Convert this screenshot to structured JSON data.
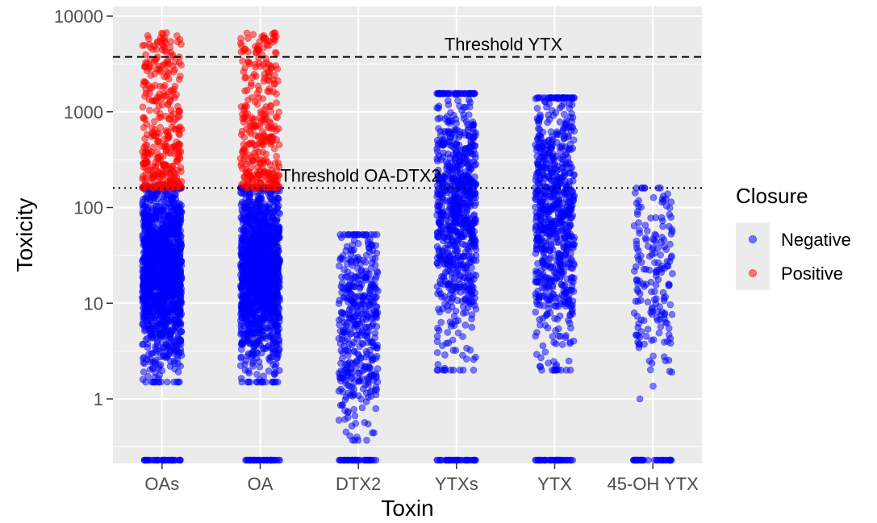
{
  "chart_data": {
    "type": "scatter",
    "title": "",
    "xlabel": "Toxin",
    "ylabel": "Toxicity",
    "y_scale": "log10",
    "ylim": [
      0.2,
      10000
    ],
    "y_ticks": [
      1,
      10,
      100,
      1000,
      10000
    ],
    "y_tick_labels": [
      "1",
      "10",
      "100",
      "1000",
      "10000"
    ],
    "categories": [
      "OAs",
      "OA",
      "DTX2",
      "YTXs",
      "YTX",
      "45-OH YTX"
    ],
    "grid": true,
    "background": "#ebebeb",
    "legend": {
      "title": "Closure",
      "position": "right",
      "entries": [
        {
          "label": "Negative",
          "color": "#0000ff"
        },
        {
          "label": "Positive",
          "color": "#ff0000"
        }
      ]
    },
    "thresholds": [
      {
        "label": "Threshold YTX",
        "value": 3750,
        "style": "dashed"
      },
      {
        "label": "Threshold OA-DTX2",
        "value": 160,
        "style": "dotted"
      }
    ],
    "distributions": [
      {
        "category": "OAs",
        "negative_range": [
          1.5,
          160
        ],
        "positive_range": [
          160,
          6700
        ],
        "n_negative": 1400,
        "n_positive": 350,
        "zero_cluster": true
      },
      {
        "category": "OA",
        "negative_range": [
          1.5,
          160
        ],
        "positive_range": [
          160,
          6700
        ],
        "n_negative": 1400,
        "n_positive": 330,
        "zero_cluster": true
      },
      {
        "category": "DTX2",
        "negative_range": [
          0.37,
          52
        ],
        "positive_range": null,
        "n_negative": 420,
        "n_positive": 0,
        "zero_cluster": true
      },
      {
        "category": "YTXs",
        "negative_range": [
          2,
          1550
        ],
        "positive_range": null,
        "n_negative": 800,
        "n_positive": 0,
        "zero_cluster": true
      },
      {
        "category": "YTX",
        "negative_range": [
          2,
          1400
        ],
        "positive_range": null,
        "n_negative": 750,
        "n_positive": 0,
        "zero_cluster": true
      },
      {
        "category": "45-OH YTX",
        "negative_range": [
          1,
          160
        ],
        "positive_range": null,
        "n_negative": 180,
        "n_positive": 0,
        "zero_cluster": true
      }
    ]
  }
}
